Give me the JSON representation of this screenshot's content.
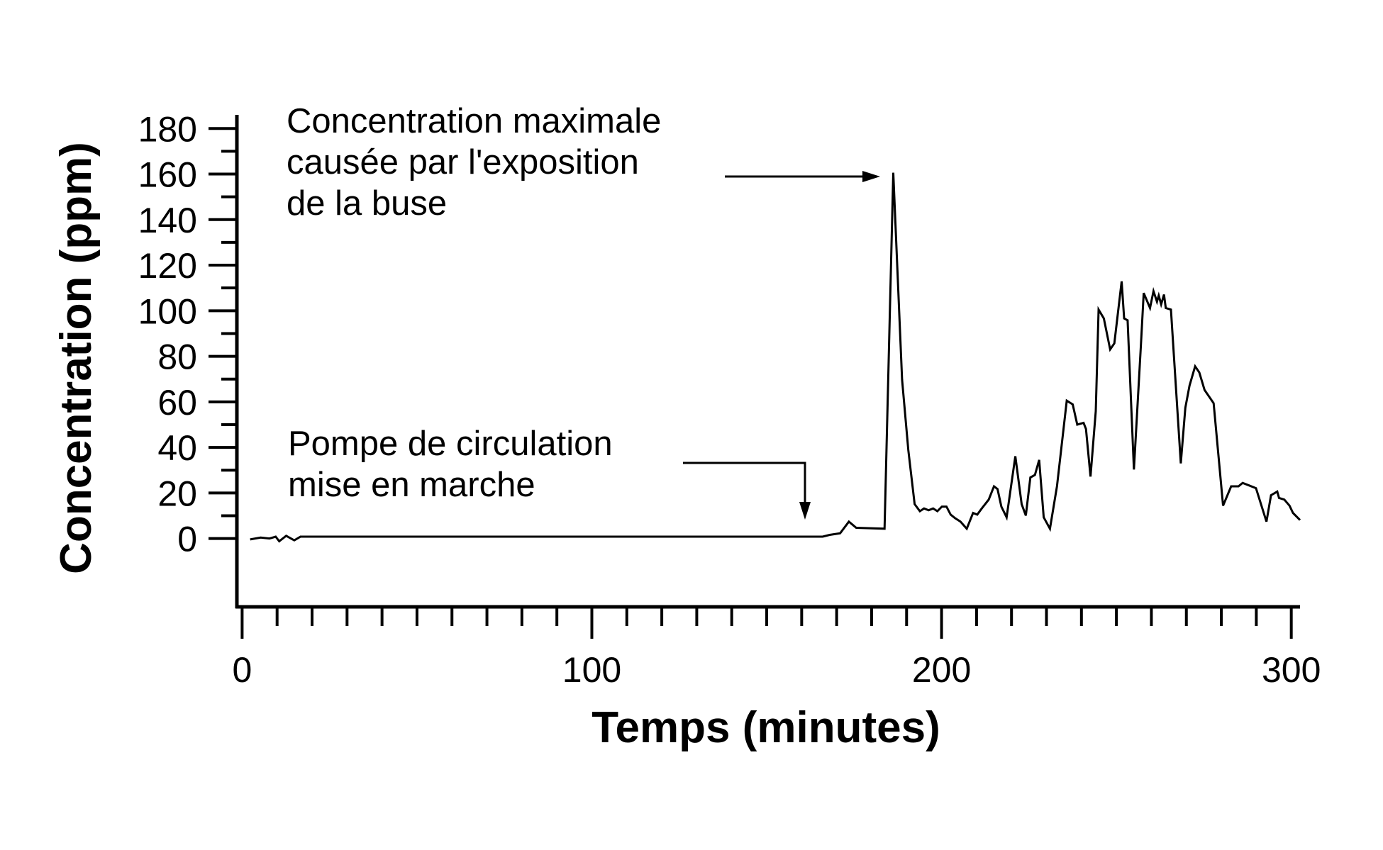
{
  "chart_data": {
    "type": "line",
    "x_label": "Temps (minutes)",
    "y_label": "Concentration (ppm)",
    "annotations": [
      {
        "lines": [
          "Concentration maximale",
          "causée par l'exposition",
          "de la buse"
        ]
      },
      {
        "lines": [
          "Pompe de circulation",
          "mise en marche"
        ]
      }
    ],
    "color": "#000000",
    "xlim": [
      -1.5,
      302.5
    ],
    "ylim": [
      -30,
      186
    ],
    "xticks": [
      0,
      100,
      200,
      300
    ],
    "xticks_minor": [
      10,
      20,
      30,
      40,
      50,
      60,
      70,
      80,
      90,
      110,
      120,
      130,
      140,
      150,
      160,
      170,
      180,
      190,
      210,
      220,
      230,
      240,
      250,
      260,
      270,
      280,
      290
    ],
    "yticks": [
      0,
      20,
      40,
      60,
      80,
      100,
      120,
      140,
      160,
      180
    ],
    "yticks_minor": [
      10,
      30,
      50,
      70,
      90,
      110,
      130,
      150,
      170
    ],
    "x": [
      2.3,
      5.3,
      7.8,
      9.6,
      10.6,
      12.6,
      14.9,
      16.7,
      166.0,
      168.0,
      171.0,
      173.5,
      175.6,
      183.7,
      186.2,
      188.7,
      190.5,
      192.3,
      193.8,
      195.0,
      196.3,
      197.6,
      198.8,
      200.1,
      201.4,
      202.6,
      203.9,
      205.4,
      207.2,
      209.0,
      210.2,
      211.5,
      213.5,
      215.0,
      216.0,
      217.1,
      218.6,
      221.1,
      222.9,
      224.1,
      225.4,
      226.7,
      227.9,
      229.2,
      231.0,
      233.0,
      235.8,
      237.5,
      238.8,
      240.6,
      241.3,
      242.6,
      244.1,
      244.9,
      246.4,
      248.2,
      249.4,
      251.5,
      252.2,
      253.2,
      255.0,
      257.0,
      257.8,
      259.6,
      260.6,
      261.6,
      262.1,
      262.8,
      263.6,
      264.1,
      265.6,
      268.4,
      269.7,
      270.9,
      272.5,
      273.7,
      275.2,
      277.8,
      280.5,
      282.8,
      284.9,
      286.1,
      287.9,
      289.9,
      292.9,
      294.2,
      296.0,
      296.5,
      298.0,
      299.5,
      300.5,
      302.5
    ],
    "values": [
      -0.4,
      0.4,
      0,
      0.8,
      -1.2,
      1.2,
      -0.8,
      0.8,
      0.8,
      1.6,
      2.3,
      7.4,
      4.7,
      4.3,
      160.6,
      69.8,
      38.8,
      15.1,
      12.0,
      13.2,
      12.4,
      13.2,
      12.0,
      14.0,
      14.0,
      10.5,
      8.9,
      7.4,
      4.3,
      11.2,
      10.5,
      13.2,
      17.1,
      22.9,
      21.7,
      14.0,
      9.3,
      36.1,
      15.1,
      10.1,
      26.8,
      27.9,
      34.5,
      9.3,
      4.3,
      22.9,
      60.5,
      58.9,
      50.0,
      50.8,
      48.1,
      27.2,
      55.9,
      100.5,
      96.6,
      83.0,
      85.7,
      112.9,
      96.6,
      95.8,
      30.3,
      84.6,
      107.8,
      101.2,
      108.6,
      104.0,
      106.7,
      102.8,
      107.1,
      101.2,
      100.5,
      33.0,
      57.4,
      67.1,
      75.6,
      72.9,
      65.2,
      59.4,
      14.4,
      22.9,
      22.9,
      24.4,
      23.3,
      22.1,
      7.4,
      19.0,
      20.6,
      17.8,
      17.1,
      14.4,
      11.2,
      8.1
    ]
  }
}
